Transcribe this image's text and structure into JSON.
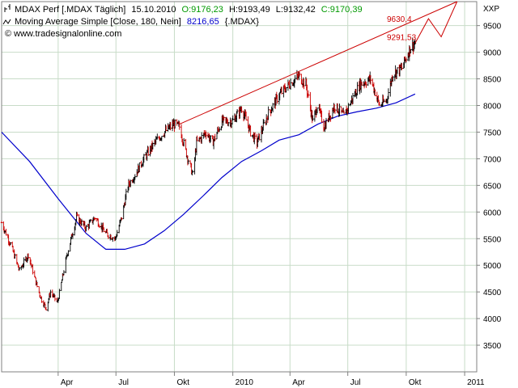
{
  "header": {
    "line1": {
      "symbol": "MDAX Perf [.MDAX  Täglich]",
      "date": "15.10.2010",
      "open": "O:9176,23",
      "high": "H:9193,49",
      "low": "L:9132,42",
      "close": "C:9170,39"
    },
    "line2": {
      "indicator": "Moving Average Simple [Close, 180, Nein]",
      "value": "8216,65",
      "ref": "{.MDAX}"
    },
    "line3": "© www.tradesignalonline.com",
    "axis_unit": "XXP"
  },
  "colors": {
    "price": "#000000",
    "price_down": "#cc0000",
    "ma": "#0000cc",
    "trend": "#cc0000",
    "grid": "#c8dcc8",
    "close_green": "#009900"
  },
  "chart_data": {
    "type": "line",
    "series": [
      {
        "name": "MDAX Perf",
        "style": "ohlc",
        "x": [
          "2009-01-02",
          "2009-01-16",
          "2009-01-30",
          "2009-02-13",
          "2009-02-27",
          "2009-03-06",
          "2009-03-13",
          "2009-03-20",
          "2009-03-31",
          "2009-04-15",
          "2009-04-30",
          "2009-05-15",
          "2009-05-29",
          "2009-06-15",
          "2009-06-30",
          "2009-07-10",
          "2009-07-20",
          "2009-07-31",
          "2009-08-14",
          "2009-08-31",
          "2009-09-15",
          "2009-09-30",
          "2009-10-09",
          "2009-10-20",
          "2009-10-30",
          "2009-11-05",
          "2009-11-20",
          "2009-11-30",
          "2009-12-15",
          "2009-12-31",
          "2010-01-15",
          "2010-01-29",
          "2010-02-08",
          "2010-02-26",
          "2010-03-15",
          "2010-03-31",
          "2010-04-15",
          "2010-04-26",
          "2010-05-07",
          "2010-05-14",
          "2010-05-25",
          "2010-06-10",
          "2010-06-25",
          "2010-07-09",
          "2010-07-20",
          "2010-08-06",
          "2010-08-20",
          "2010-08-31",
          "2010-09-10",
          "2010-09-24",
          "2010-10-08",
          "2010-10-15"
        ],
        "close": [
          5800,
          5400,
          4900,
          5200,
          4600,
          4350,
          4200,
          4500,
          4300,
          5200,
          5900,
          5700,
          5900,
          5600,
          5500,
          5900,
          6500,
          6700,
          7000,
          7300,
          7500,
          7650,
          7600,
          7100,
          6700,
          7300,
          7500,
          7300,
          7700,
          7700,
          7950,
          7500,
          7300,
          7850,
          8200,
          8400,
          8550,
          8400,
          7700,
          8000,
          7600,
          8000,
          7800,
          8150,
          8400,
          8500,
          8000,
          8100,
          8600,
          8700,
          9100,
          9170
        ]
      },
      {
        "name": "Moving Average Simple",
        "x": [
          "2009-01-02",
          "2009-02-15",
          "2009-04-01",
          "2009-05-15",
          "2009-06-15",
          "2009-07-15",
          "2009-08-15",
          "2009-09-15",
          "2009-10-15",
          "2009-11-15",
          "2009-12-15",
          "2010-01-15",
          "2010-02-15",
          "2010-03-15",
          "2010-04-15",
          "2010-05-15",
          "2010-06-15",
          "2010-07-15",
          "2010-08-15",
          "2010-09-15",
          "2010-10-15"
        ],
        "values": [
          7500,
          6950,
          6250,
          5600,
          5300,
          5300,
          5400,
          5650,
          5950,
          6300,
          6650,
          6950,
          7150,
          7350,
          7450,
          7650,
          7800,
          7880,
          7950,
          8050,
          8216
        ]
      }
    ],
    "annotations": [
      {
        "text": "9630,4",
        "value": 9630.4
      },
      {
        "text": "9291,53",
        "value": 9291.53
      }
    ],
    "trendline": {
      "x": [
        "2009-10-09",
        "2010-12-20"
      ],
      "y": [
        7650,
        9950
      ]
    },
    "projection": {
      "x": [
        "2010-10-15",
        "2010-11-05",
        "2010-11-25",
        "2010-12-20"
      ],
      "y": [
        9170,
        9630,
        9290,
        9950
      ]
    },
    "xticks": [
      {
        "label": "Apr",
        "x": "2009-04-01"
      },
      {
        "label": "Jul",
        "x": "2009-07-01"
      },
      {
        "label": "Okt",
        "x": "2009-10-01"
      },
      {
        "label": "2010",
        "x": "2010-01-01"
      },
      {
        "label": "Apr",
        "x": "2010-04-01"
      },
      {
        "label": "Jul",
        "x": "2010-07-01"
      },
      {
        "label": "Okt",
        "x": "2010-10-01"
      },
      {
        "label": "2011",
        "x": "2011-01-01"
      }
    ],
    "yticks": [
      "3500",
      "4000",
      "4500",
      "5000",
      "5500",
      "6000",
      "6500",
      "7000",
      "7500",
      "8000",
      "8500",
      "9000",
      "9500"
    ],
    "ylim": [
      3000,
      9950
    ],
    "xlim": [
      "2009-01-02",
      "2011-01-20"
    ],
    "grid": true
  }
}
